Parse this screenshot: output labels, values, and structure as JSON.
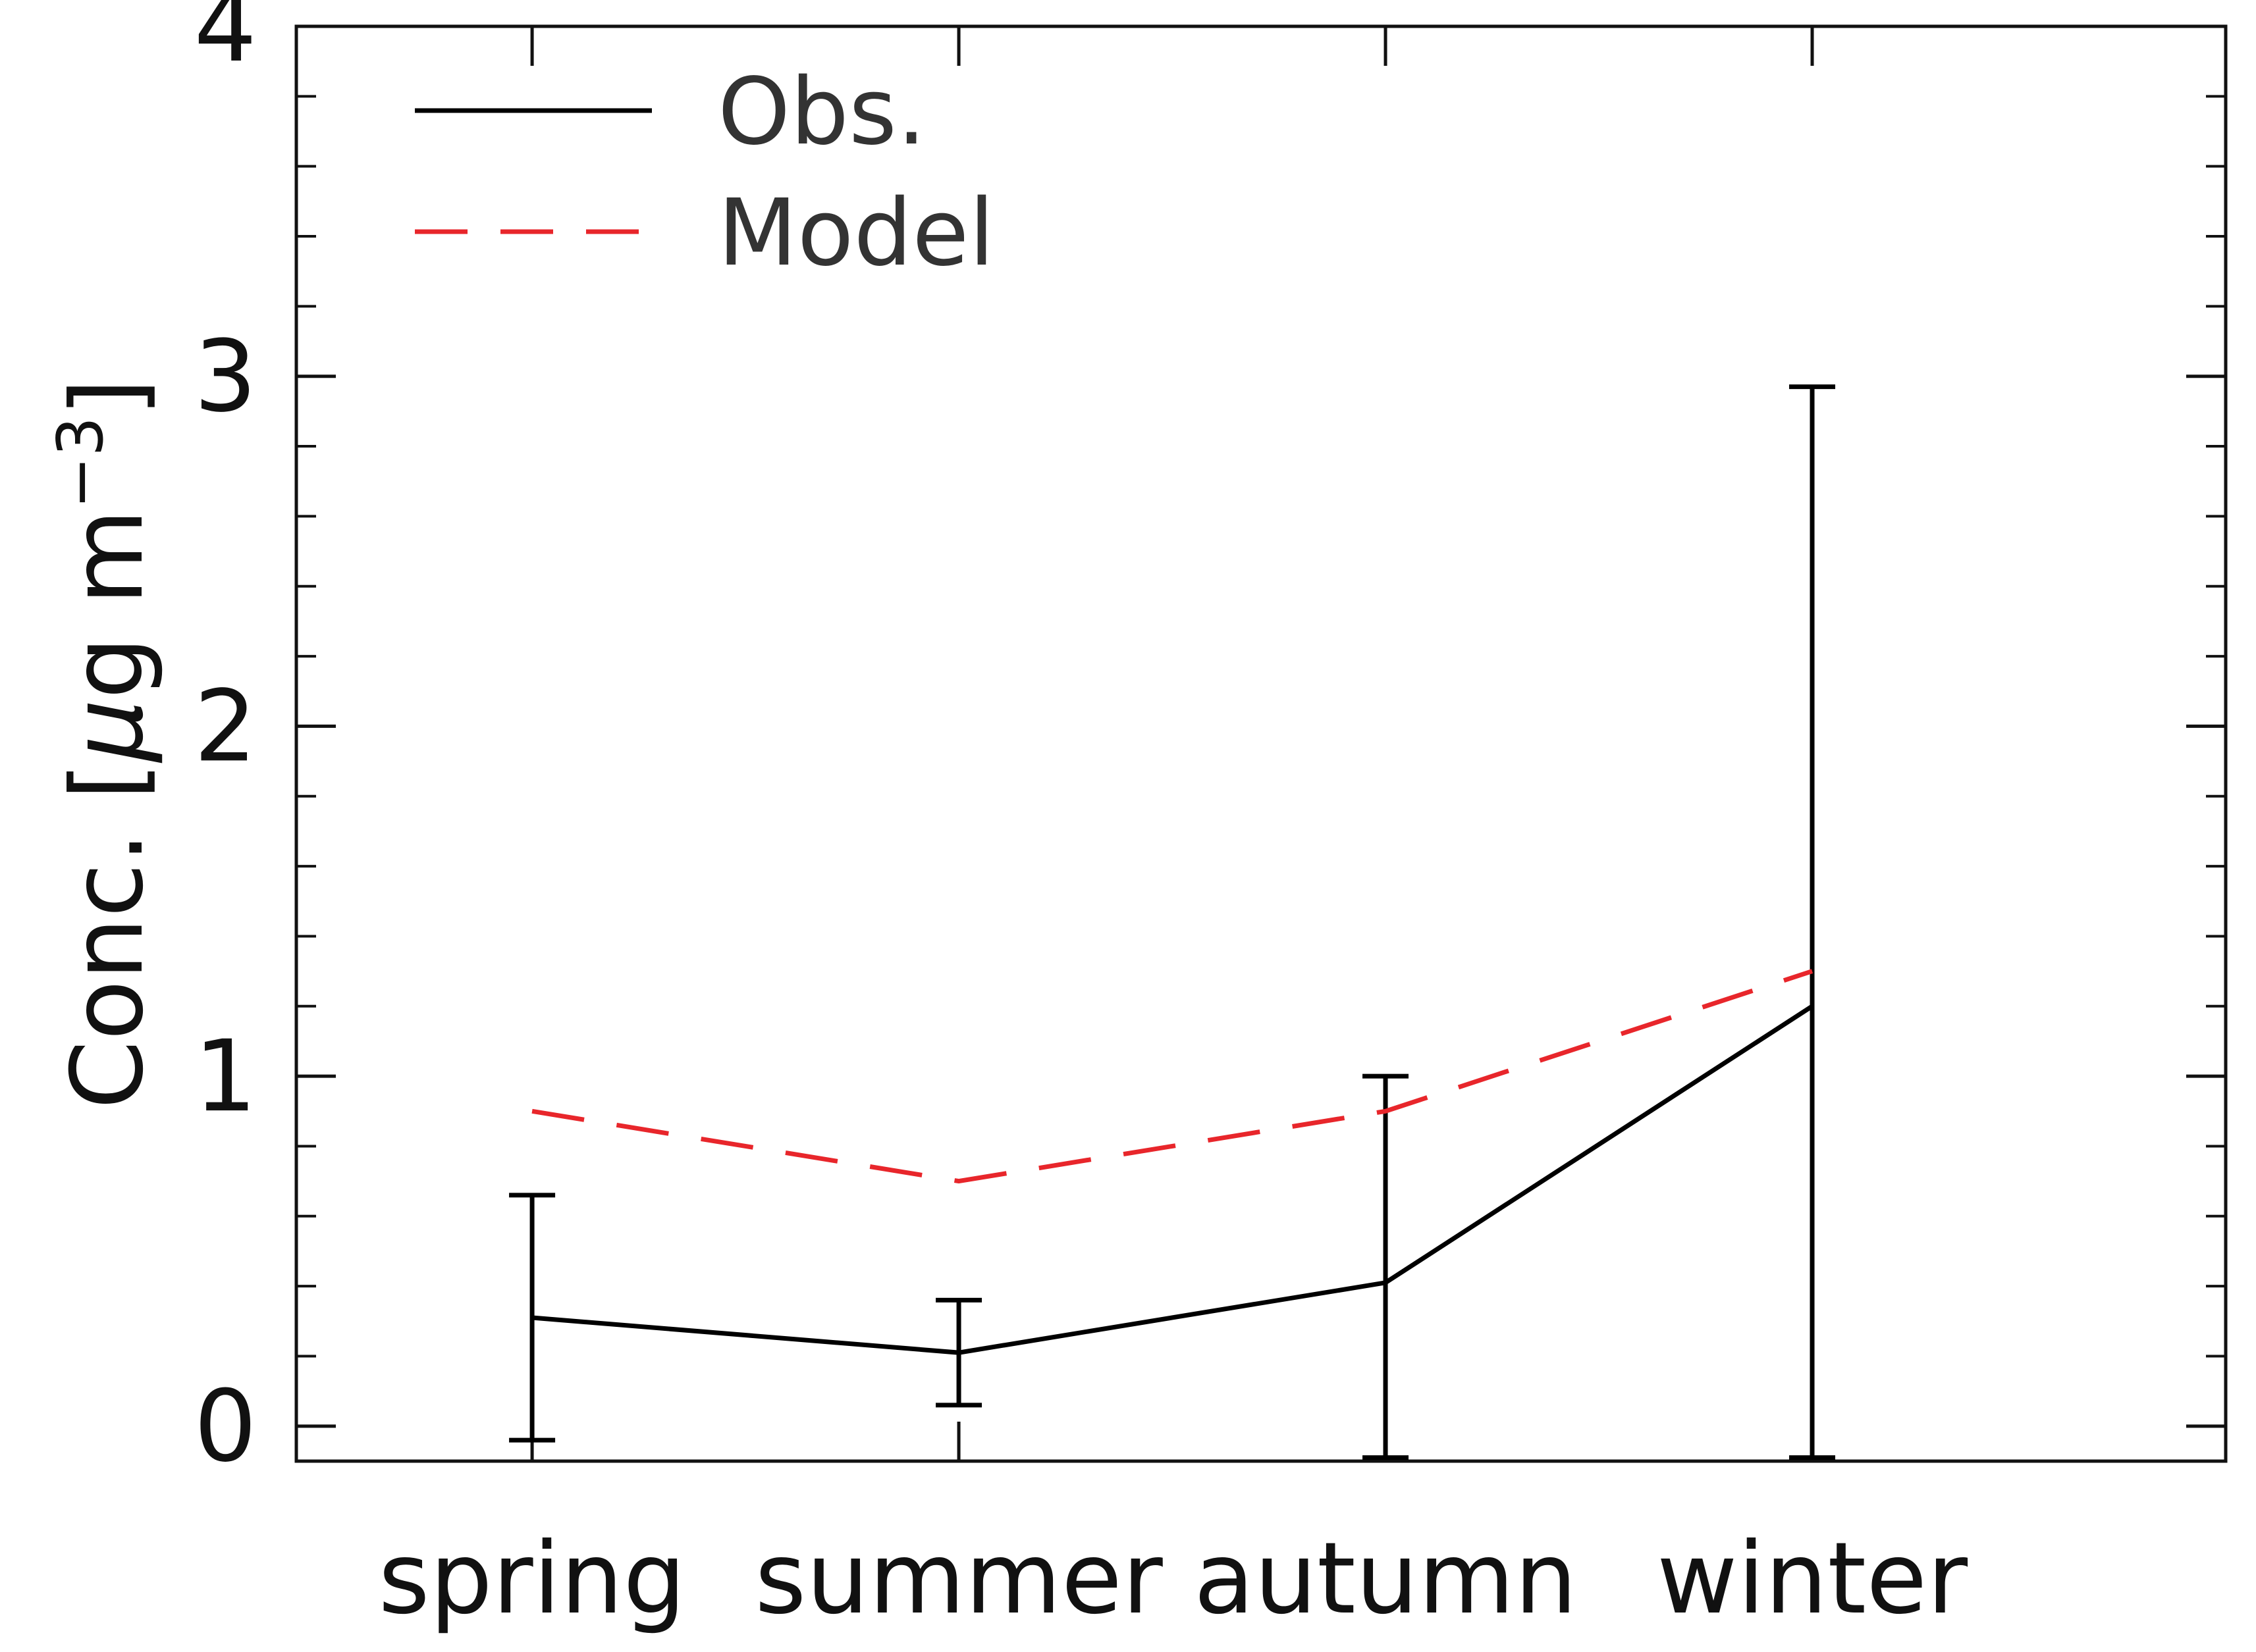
{
  "chart_data": {
    "type": "line",
    "title": "",
    "xlabel": "",
    "ylabel": {
      "prefix": "Conc. [",
      "mu": "μ",
      "middle": "g m",
      "exponent": "−3",
      "suffix": "]"
    },
    "categories": [
      "spring",
      "summer",
      "autumn",
      "winter"
    ],
    "ylim": [
      -0.1,
      4
    ],
    "yticks": [
      "0",
      "1",
      "2",
      "3",
      "4"
    ],
    "grid": false,
    "legend_position": "top-left",
    "series": [
      {
        "name": "Obs.",
        "color": "#000000",
        "line_style": "solid",
        "values": [
          0.31,
          0.21,
          0.41,
          1.2
        ],
        "error_low": [
          -0.04,
          0.06,
          -0.09,
          -0.09
        ],
        "error_high": [
          0.66,
          0.36,
          1.0,
          2.97
        ]
      },
      {
        "name": "Model",
        "color": "#e8262b",
        "line_style": "dashed",
        "values": [
          0.9,
          0.7,
          0.9,
          1.3
        ]
      }
    ]
  }
}
